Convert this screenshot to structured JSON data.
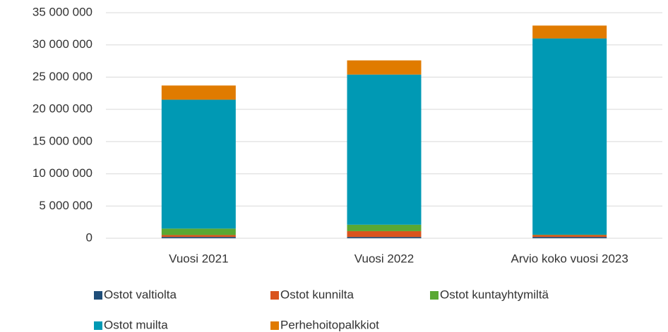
{
  "chart_data": {
    "type": "stacked_bar",
    "categories": [
      "Vuosi 2021",
      "Vuosi 2022",
      "Arvio koko vuosi 2023"
    ],
    "series": [
      {
        "name": "Ostot valtiolta",
        "color": "#1f4e79",
        "values": [
          200000,
          200000,
          200000
        ]
      },
      {
        "name": "Ostot kunnilta",
        "color": "#d9541e",
        "values": [
          300000,
          900000,
          300000
        ]
      },
      {
        "name": "Ostot kuntayhtymiltä",
        "color": "#5aa832",
        "values": [
          1000000,
          1000000,
          50000
        ]
      },
      {
        "name": "Ostot muilta",
        "color": "#0099b4",
        "values": [
          20000000,
          23300000,
          30450000
        ]
      },
      {
        "name": "Perhehoitopalkkiot",
        "color": "#e07b00",
        "values": [
          2200000,
          2200000,
          2000000
        ]
      }
    ],
    "ylim": [
      0,
      35000000
    ],
    "yticks": [
      {
        "value": 0,
        "label": "0"
      },
      {
        "value": 5000000,
        "label": "5 000 000"
      },
      {
        "value": 10000000,
        "label": "10 000 000"
      },
      {
        "value": 15000000,
        "label": "15 000 000"
      },
      {
        "value": 20000000,
        "label": "20 000 000"
      },
      {
        "value": 25000000,
        "label": "25 000 000"
      },
      {
        "value": 30000000,
        "label": "30 000 000"
      },
      {
        "value": 35000000,
        "label": "35 000 000"
      }
    ],
    "grid": true,
    "legend": "bottom"
  }
}
